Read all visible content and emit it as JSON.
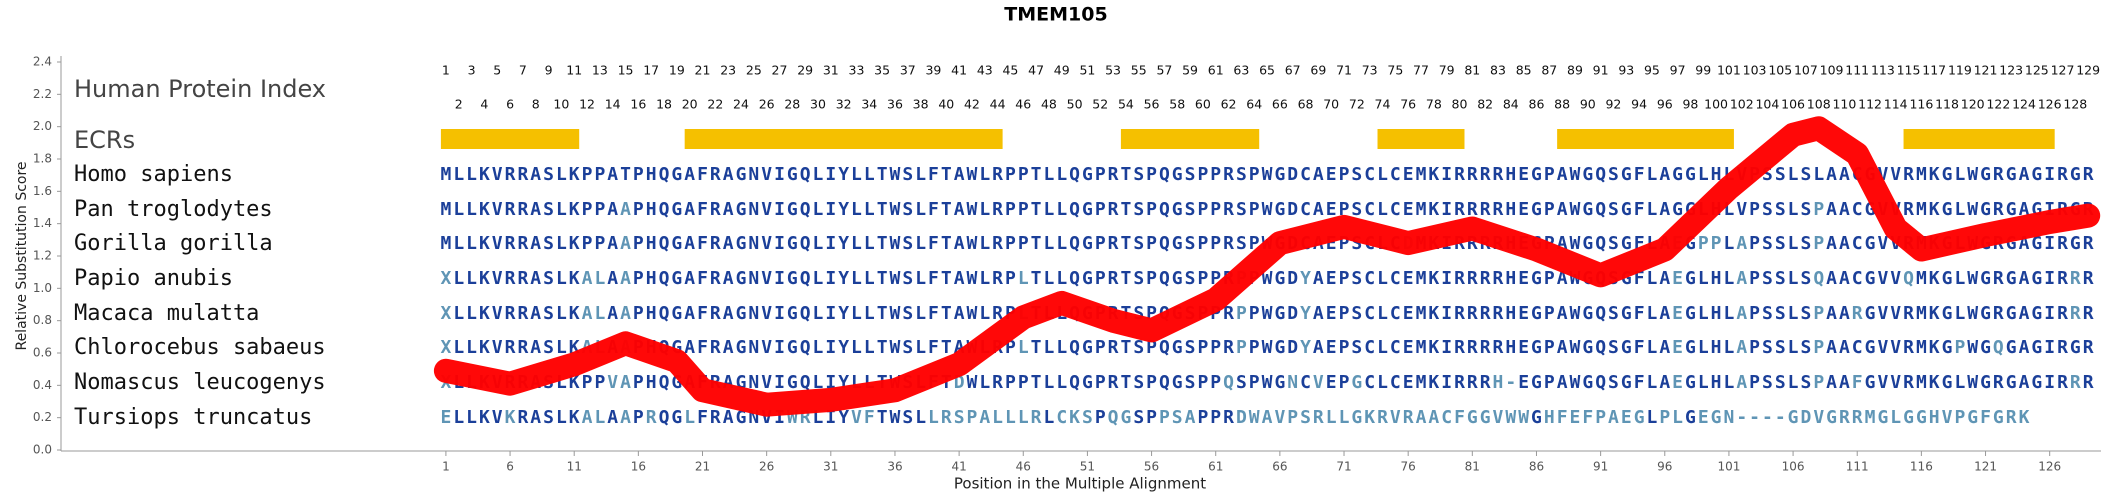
{
  "chart_data": {
    "type": "line",
    "title": "TMEM105",
    "ylabel": "Relative Substitution Score",
    "xlabel": "Position in the Multiple Alignment",
    "index_label": "Human Protein Index",
    "ecr_label": "ECRs",
    "xlim": [
      -29,
      130
    ],
    "ylim": [
      0,
      2.4
    ],
    "yticks": [
      {
        "value": 0,
        "label": "0.0"
      },
      0.2,
      0.4,
      0.6,
      0.8,
      {
        "value": 1,
        "label": "1.0"
      },
      1.2,
      1.4,
      1.6,
      1.8,
      {
        "value": 2,
        "label": "2.0"
      },
      2.2,
      2.4
    ],
    "xticks": [
      1,
      6,
      11,
      16,
      21,
      26,
      31,
      36,
      41,
      46,
      51,
      56,
      61,
      66,
      71,
      76,
      81,
      86,
      91,
      96,
      101,
      106,
      111,
      116,
      121,
      126
    ],
    "human_index": [
      1,
      2,
      3,
      4,
      5,
      6,
      7,
      8,
      9,
      10,
      11,
      12,
      13,
      14,
      15,
      16,
      17,
      18,
      19,
      20,
      21,
      22,
      23,
      24,
      25,
      26,
      27,
      28,
      29,
      30,
      31,
      32,
      33,
      34,
      35,
      36,
      37,
      38,
      39,
      40,
      41,
      42,
      43,
      44,
      45,
      46,
      47,
      48,
      49,
      50,
      51,
      52,
      53,
      54,
      55,
      56,
      57,
      58,
      59,
      60,
      61,
      62,
      63,
      64,
      65,
      66,
      67,
      68,
      69,
      70,
      71,
      72,
      73,
      74,
      75,
      76,
      77,
      78,
      79,
      80,
      81,
      82,
      83,
      84,
      85,
      86,
      87,
      88,
      89,
      90,
      91,
      92,
      93,
      94,
      95,
      96,
      97,
      98,
      99,
      100,
      101,
      102,
      103,
      104,
      105,
      106,
      107,
      108,
      109,
      110,
      111,
      112,
      113,
      114,
      115,
      116,
      117,
      118,
      119,
      120,
      121,
      122,
      123,
      124,
      125,
      126,
      127,
      128,
      129
    ],
    "ecrs": [
      [
        1,
        11
      ],
      [
        20,
        44
      ],
      [
        54,
        64
      ],
      [
        74,
        80
      ],
      [
        88,
        101
      ],
      [
        115,
        126
      ]
    ],
    "ecr_color": "#f5c000",
    "residue_colors": {
      "conserved": "#1b3f99",
      "variable": "#5f95b5"
    },
    "alignment": [
      {
        "name": "Homo sapiens",
        "sequence": "MLLKVRRASLKPPATPHQGAFRAGNVIGQLIYLLTWSLFTAWLRPPTLLQGPRTSPQGSPPRSPWGDCAEPSCLCEMKIRRRRHEGPAWGQSGFLAGGLHLVPSSLSLAACGVVRMKGLWGRGAGIRGR"
      },
      {
        "name": "Pan troglodytes",
        "sequence": "MLLKVRRASLKPPAAPHQGAFRAGNVIGQLIYLLTWSLFTAWLRPPTLLQGPRTSPQGSPPRSPWGDCAEPSCLCEMKIRRRRHEGPAWGQSGFLAGGLHLVPSSLSPAACGVVRMKGLWGRGAGIRGR"
      },
      {
        "name": "Gorilla gorilla",
        "sequence": "MLLKVRRASLKPPAAPHQGAFRAGNVIGQLIYLLTWSLFTAWLRPPTLLQGPRTSPQGSPPRSPWGDCAEPSCLCDMKIRRRRHEGPAWGQSGFLAEGPPLAPSSLSPAACGVVRMKGLWGRGAGIRGR"
      },
      {
        "name": "Papio anubis",
        "sequence": "XLLKVRRASLKALAAPHQGAFRAGNVIGQLIYLLTWSLFTAWLRPLTLLQGPRTSPQGSPPRPPWGDYAEPSCLCEMKIRRRRHEGPAWGQSGFLAEGLHLAPSSLSQAACGVVQMKGLWGRGAGIRRR"
      },
      {
        "name": "Macaca mulatta",
        "sequence": "XLLKVRRASLKALAAPHQGAFRAGNVIGQLIYLLTWSLFTAWLRPLTLLQGPRTSPQGSPPRPPWGDYAEPSCLCEMKIRRRRHEGPAWGQSGFLAEGLHLAPSSLSPAARGVVRMKGLWGRGAGIRRR"
      },
      {
        "name": "Chlorocebus sabaeus",
        "sequence": "XLLKVRRASLKALAAPHQGAFRAGNVIGQLIYLLTWSLFTAWLRPLTLLQGPRTSPQGSPPRPPWGDYAEPSCLCEMKIRRRRHEGPAWGQSGFLAEGLHLAPSSLSPAACGVVRMKGPWGQGAGIRGR"
      },
      {
        "name": "Nomascus leucogenys",
        "sequence": "XLLKVRRASLKPPVAPHQGAFRAGNVIGQLIYLLTWSLFTDWLRPPTLLQGPRTSPQGSPPQSPWGNCVEPGCLCEMKIRRRH-EGPAWGQSGFLAEGLHLAPSSLSPAAFGVVRMKGLWGRGAGIRRR"
      },
      {
        "name": "Tursiops truncatus",
        "sequence": "ELLKVKRASLKALAAPRQGLFRAGNVIWRLIYVFTWSLLRSPALLLRLCKSPQGSPPSAPPRDWAVPSRLLGKRVRAACFGGVWWGHFEFPAEGLPLGEGN----GDVGRRMGLGGHVPGFGRK"
      }
    ],
    "series": [
      {
        "color": "#ff0000",
        "x": [
          1,
          6,
          11,
          15,
          19,
          21,
          26,
          31,
          36,
          41,
          46,
          49,
          53,
          56,
          61,
          66,
          71,
          76,
          81,
          86,
          91,
          96,
          101,
          106,
          108,
          111,
          114,
          116,
          121,
          126,
          129
        ],
        "values": [
          0.49,
          0.41,
          0.53,
          0.66,
          0.55,
          0.37,
          0.28,
          0.31,
          0.37,
          0.53,
          0.82,
          0.91,
          0.8,
          0.74,
          0.93,
          1.28,
          1.38,
          1.28,
          1.37,
          1.24,
          1.08,
          1.24,
          1.62,
          1.95,
          1.99,
          1.83,
          1.37,
          1.24,
          1.33,
          1.41,
          1.45
        ]
      }
    ]
  }
}
